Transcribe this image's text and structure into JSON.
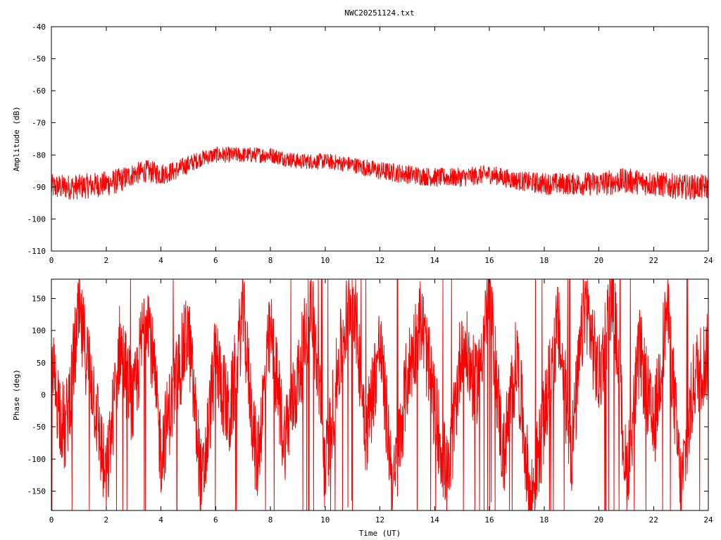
{
  "title": "NWC20251124.txt",
  "colors": {
    "trace": "#ff0000",
    "axis": "#000000",
    "background": "#ffffff"
  },
  "chart_data": [
    {
      "id": "amplitude",
      "type": "line",
      "ylabel": "Amplitude (dB)",
      "xlabel": "",
      "xlim": [
        0,
        24
      ],
      "ylim": [
        -110,
        -40
      ],
      "xticks": [
        "0",
        "2",
        "4",
        "6",
        "8",
        "10",
        "12",
        "14",
        "16",
        "18",
        "20",
        "22",
        "24"
      ],
      "yticks": [
        "-40",
        "-50",
        "-60",
        "-70",
        "-80",
        "-90",
        "-100",
        "-110"
      ],
      "series": [
        {
          "color": "#ff0000",
          "x": [
            0,
            1,
            2,
            2.5,
            3,
            3.5,
            4,
            4.5,
            5,
            5.5,
            6,
            7,
            8,
            9,
            10,
            11,
            12,
            13,
            14,
            15,
            16,
            17,
            18,
            19,
            20,
            21,
            22,
            23,
            24
          ],
          "y": [
            -90,
            -90,
            -89,
            -88,
            -86,
            -85,
            -86,
            -85,
            -83,
            -81,
            -80,
            -80,
            -80,
            -82,
            -82,
            -83,
            -85,
            -86,
            -87,
            -87,
            -86,
            -88,
            -89,
            -89,
            -89,
            -88,
            -89,
            -90,
            -90
          ],
          "spread": [
            4,
            4,
            4,
            4,
            3.5,
            3.5,
            3.5,
            3,
            3,
            2.5,
            2.5,
            2.5,
            2.5,
            2.5,
            2.5,
            2.5,
            3,
            3,
            3,
            3,
            3,
            3,
            3.5,
            3.5,
            4,
            4,
            4,
            4,
            4
          ]
        }
      ]
    },
    {
      "id": "phase",
      "type": "line",
      "ylabel": "Phase (deg)",
      "xlabel": "Time (UT)",
      "xlim": [
        0,
        24
      ],
      "ylim": [
        -180,
        180
      ],
      "xticks": [
        "0",
        "2",
        "4",
        "6",
        "8",
        "10",
        "12",
        "14",
        "16",
        "18",
        "20",
        "22",
        "24"
      ],
      "yticks": [
        "150",
        "100",
        "50",
        "0",
        "-50",
        "-100",
        "-150"
      ],
      "series": [
        {
          "color": "#ff0000",
          "x": [
            0,
            0.5,
            1,
            1.5,
            2,
            2.5,
            3,
            3.5,
            4,
            4.5,
            5,
            5.5,
            6,
            6.5,
            7,
            7.5,
            8,
            8.5,
            9,
            9.5,
            10,
            10.5,
            11,
            11.5,
            12,
            12.5,
            13,
            13.5,
            14,
            14.5,
            15,
            15.5,
            16,
            16.5,
            17,
            17.5,
            18,
            18.5,
            19,
            19.5,
            20,
            20.5,
            21,
            21.5,
            22,
            22.5,
            23,
            23.5,
            24
          ],
          "y": [
            40,
            -60,
            120,
            20,
            -140,
            80,
            -20,
            150,
            -90,
            10,
            100,
            -150,
            60,
            -40,
            130,
            -110,
            100,
            -70,
            20,
            150,
            -120,
            50,
            170,
            -60,
            80,
            -150,
            30,
            120,
            -20,
            -140,
            90,
            10,
            160,
            -100,
            60,
            -170,
            -40,
            110,
            -90,
            150,
            20,
            170,
            -130,
            70,
            -60,
            140,
            -150,
            30,
            60
          ],
          "noise": 70
        }
      ]
    }
  ]
}
